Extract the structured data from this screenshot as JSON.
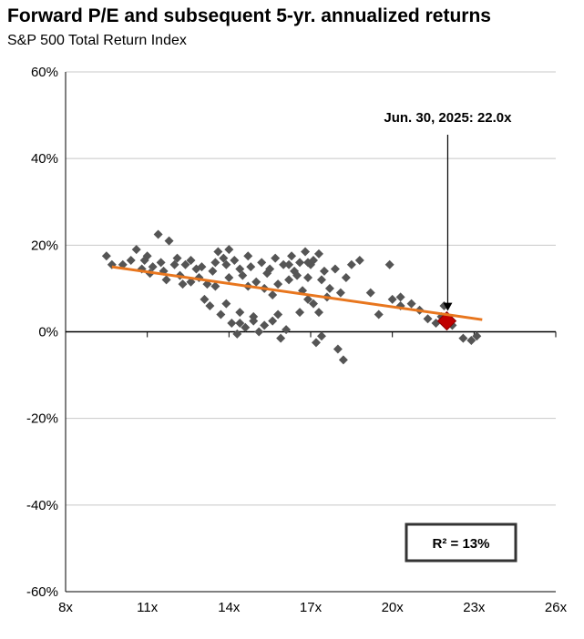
{
  "title": "Forward P/E and subsequent 5-yr. annualized returns",
  "subtitle": "S&P 500 Total Return Index",
  "colors": {
    "points": "#555555",
    "trend": "#E8761E",
    "highlight": "#C00000",
    "grid": "#c8c8c8",
    "axis": "#000000"
  },
  "annotation": {
    "label": "Jun. 30, 2025: 22.0x",
    "x": 22.0,
    "y": 2.5
  },
  "r2_label": "R²  = 13%",
  "chart_data": {
    "type": "scatter",
    "title": "Forward P/E and subsequent 5-yr. annualized returns",
    "subtitle": "S&P 500 Total Return Index",
    "xlabel": "",
    "ylabel": "",
    "xlim": [
      8,
      26
    ],
    "ylim": [
      -60,
      60
    ],
    "x_ticks": [
      8,
      11,
      14,
      17,
      20,
      23,
      26
    ],
    "x_tick_labels": [
      "8x",
      "11x",
      "14x",
      "17x",
      "20x",
      "23x",
      "26x"
    ],
    "y_ticks": [
      60,
      40,
      20,
      0,
      -20,
      -40,
      -60
    ],
    "y_tick_labels": [
      "60%",
      "40%",
      "20%",
      "0%",
      "-20%",
      "-40%",
      "-60%"
    ],
    "grid": "horizontal",
    "trendline": {
      "x": [
        9.7,
        23.3
      ],
      "y": [
        15.0,
        2.8
      ]
    },
    "highlight_point": {
      "x": 22.0,
      "y": 2.5,
      "label": "Jun. 30, 2025: 22.0x"
    },
    "r_squared": "13%",
    "points": [
      [
        9.5,
        17.5
      ],
      [
        9.7,
        15.5
      ],
      [
        10.4,
        16.5
      ],
      [
        10.6,
        19.0
      ],
      [
        10.8,
        14.5
      ],
      [
        11.0,
        17.5
      ],
      [
        11.1,
        13.5
      ],
      [
        11.2,
        15.0
      ],
      [
        11.4,
        22.5
      ],
      [
        11.5,
        16.0
      ],
      [
        11.6,
        14.0
      ],
      [
        11.7,
        12.0
      ],
      [
        11.8,
        21.0
      ],
      [
        12.0,
        15.5
      ],
      [
        12.1,
        17.0
      ],
      [
        12.2,
        13.0
      ],
      [
        12.3,
        11.0
      ],
      [
        12.4,
        15.5
      ],
      [
        12.6,
        16.5
      ],
      [
        12.8,
        14.5
      ],
      [
        12.9,
        12.5
      ],
      [
        13.0,
        15.0
      ],
      [
        13.1,
        7.5
      ],
      [
        13.2,
        11.0
      ],
      [
        13.3,
        6.0
      ],
      [
        13.4,
        14.0
      ],
      [
        13.5,
        16.0
      ],
      [
        13.6,
        18.5
      ],
      [
        13.7,
        4.0
      ],
      [
        13.8,
        17.0
      ],
      [
        13.9,
        15.5
      ],
      [
        14.0,
        19.0
      ],
      [
        14.0,
        12.5
      ],
      [
        14.1,
        2.0
      ],
      [
        14.2,
        16.5
      ],
      [
        14.3,
        -0.5
      ],
      [
        14.4,
        14.5
      ],
      [
        14.5,
        13.0
      ],
      [
        14.6,
        1.0
      ],
      [
        14.7,
        17.5
      ],
      [
        14.8,
        15.0
      ],
      [
        14.9,
        2.5
      ],
      [
        15.0,
        11.5
      ],
      [
        15.1,
        0.0
      ],
      [
        15.2,
        16.0
      ],
      [
        15.3,
        1.5
      ],
      [
        15.4,
        13.5
      ],
      [
        15.5,
        14.5
      ],
      [
        15.6,
        8.5
      ],
      [
        15.7,
        17.0
      ],
      [
        15.8,
        11.0
      ],
      [
        15.9,
        -1.5
      ],
      [
        16.0,
        15.5
      ],
      [
        16.1,
        0.5
      ],
      [
        16.2,
        12.0
      ],
      [
        16.3,
        17.5
      ],
      [
        16.4,
        14.0
      ],
      [
        16.5,
        13.0
      ],
      [
        16.6,
        16.0
      ],
      [
        16.7,
        9.5
      ],
      [
        16.8,
        18.5
      ],
      [
        16.9,
        7.5
      ],
      [
        17.0,
        15.5
      ],
      [
        17.1,
        6.5
      ],
      [
        17.2,
        -2.5
      ],
      [
        17.3,
        18.0
      ],
      [
        17.4,
        12.0
      ],
      [
        17.5,
        14.0
      ],
      [
        17.6,
        8.0
      ],
      [
        17.7,
        10.0
      ],
      [
        17.9,
        14.5
      ],
      [
        18.0,
        -4.0
      ],
      [
        18.1,
        9.0
      ],
      [
        18.3,
        12.5
      ],
      [
        18.5,
        15.5
      ],
      [
        18.8,
        16.5
      ],
      [
        19.2,
        9.0
      ],
      [
        19.5,
        4.0
      ],
      [
        19.9,
        15.5
      ],
      [
        20.0,
        7.5
      ],
      [
        20.3,
        8.0
      ],
      [
        20.7,
        6.5
      ],
      [
        21.0,
        5.0
      ],
      [
        21.3,
        3.0
      ],
      [
        21.6,
        2.0
      ],
      [
        21.9,
        6.0
      ],
      [
        22.2,
        1.5
      ],
      [
        22.6,
        -1.5
      ],
      [
        22.9,
        -2.0
      ],
      [
        23.1,
        -1.0
      ],
      [
        10.1,
        15.5
      ],
      [
        10.9,
        16.5
      ],
      [
        12.6,
        11.5
      ],
      [
        13.5,
        10.5
      ],
      [
        14.4,
        4.5
      ],
      [
        15.8,
        4.0
      ],
      [
        15.3,
        10.0
      ],
      [
        16.6,
        4.5
      ],
      [
        16.9,
        12.5
      ],
      [
        17.3,
        4.5
      ],
      [
        14.7,
        10.5
      ],
      [
        13.9,
        6.5
      ],
      [
        15.6,
        2.5
      ],
      [
        16.9,
        16.0
      ],
      [
        14.4,
        2.0
      ],
      [
        17.4,
        -1.0
      ],
      [
        21.8,
        3.5
      ],
      [
        20.3,
        6.0
      ],
      [
        18.2,
        -6.5
      ],
      [
        17.1,
        16.5
      ],
      [
        14.9,
        3.5
      ],
      [
        16.2,
        15.5
      ]
    ]
  }
}
